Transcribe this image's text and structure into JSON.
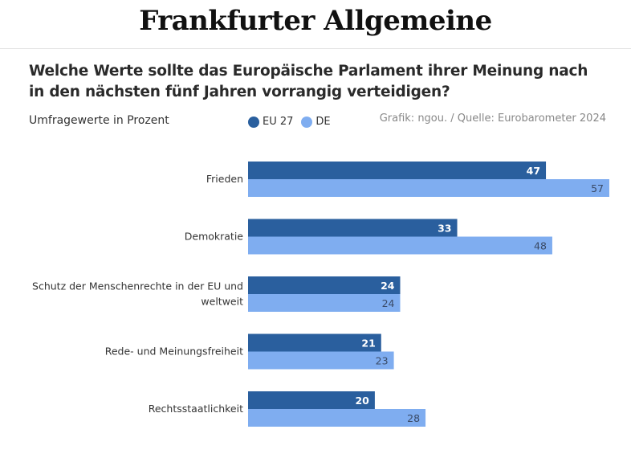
{
  "header": {
    "logo": "Frankfurter Allgemeine"
  },
  "chart_data": {
    "type": "bar",
    "orientation": "horizontal",
    "title": "Welche Werte sollte das Europäische Parlament ihrer Meinung nach in den nächsten fünf Jahren vorrangig verteidigen?",
    "subtitle": "Umfragewerte in Prozent",
    "source": "Grafik: ngou. / Quelle: Eurobarometer 2024",
    "categories": [
      [
        "Frieden"
      ],
      [
        "Demokratie"
      ],
      [
        "Schutz der Menschenrechte in der EU und",
        "weltweit"
      ],
      [
        "Rede- und Meinungsfreiheit"
      ],
      [
        "Rechtsstaatlichkeit"
      ]
    ],
    "series": [
      {
        "name": "EU 27",
        "color": "#2a5f9e",
        "label_color": "#ffffff",
        "values": [
          47,
          33,
          24,
          21,
          20
        ]
      },
      {
        "name": "DE",
        "color": "#7fadf0",
        "label_color": "#3a4a66",
        "values": [
          57,
          48,
          24,
          23,
          28
        ]
      }
    ],
    "xlim": [
      0,
      57
    ],
    "grid": false,
    "legend": "top"
  }
}
